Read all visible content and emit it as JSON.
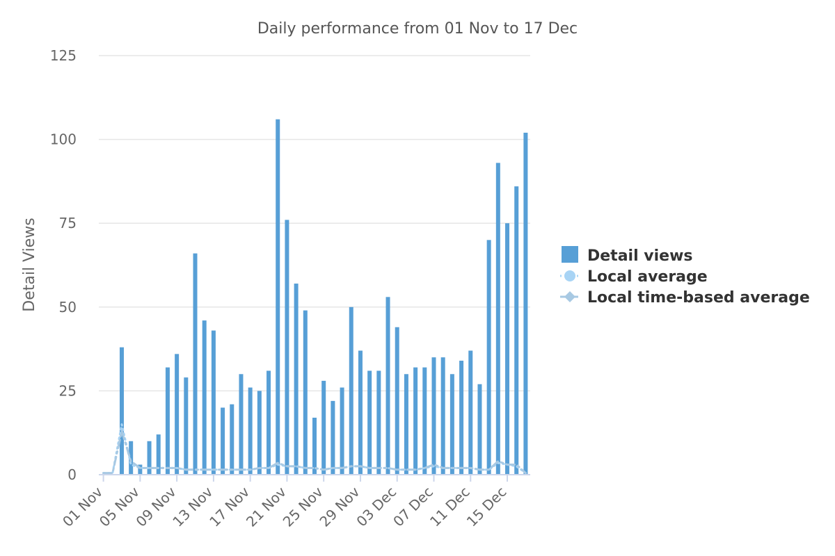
{
  "chart_data": {
    "type": "bar",
    "title": "Daily performance from 01 Nov to 17 Dec",
    "ylabel": "Detail Views",
    "xlabel": "",
    "ylim": [
      0,
      125
    ],
    "yticks": [
      0,
      25,
      50,
      75,
      100,
      125
    ],
    "grid": true,
    "legend_position": "right",
    "xtick_labels": [
      "01 Nov",
      "05 Nov",
      "09 Nov",
      "13 Nov",
      "17 Nov",
      "21 Nov",
      "25 Nov",
      "29 Nov",
      "03 Dec",
      "07 Dec",
      "11 Dec",
      "15 Dec"
    ],
    "x": [
      "01 Nov",
      "02 Nov",
      "03 Nov",
      "04 Nov",
      "05 Nov",
      "06 Nov",
      "07 Nov",
      "08 Nov",
      "09 Nov",
      "10 Nov",
      "11 Nov",
      "12 Nov",
      "13 Nov",
      "14 Nov",
      "15 Nov",
      "16 Nov",
      "17 Nov",
      "18 Nov",
      "19 Nov",
      "20 Nov",
      "21 Nov",
      "22 Nov",
      "23 Nov",
      "24 Nov",
      "25 Nov",
      "26 Nov",
      "27 Nov",
      "28 Nov",
      "29 Nov",
      "30 Nov",
      "01 Dec",
      "02 Dec",
      "03 Dec",
      "04 Dec",
      "05 Dec",
      "06 Dec",
      "07 Dec",
      "08 Dec",
      "09 Dec",
      "10 Dec",
      "11 Dec",
      "12 Dec",
      "13 Dec",
      "14 Dec",
      "15 Dec",
      "16 Dec",
      "17 Dec"
    ],
    "series": [
      {
        "name": "Detail views",
        "type": "bar",
        "color": "#579fd6",
        "values": [
          0,
          0,
          38,
          10,
          3,
          10,
          12,
          32,
          36,
          29,
          66,
          46,
          43,
          20,
          21,
          30,
          26,
          25,
          31,
          106,
          76,
          57,
          49,
          17,
          28,
          22,
          26,
          50,
          37,
          31,
          31,
          53,
          44,
          30,
          32,
          32,
          35,
          35,
          30,
          34,
          37,
          27,
          70,
          93,
          75,
          86,
          102
        ]
      },
      {
        "name": "Local average",
        "type": "line",
        "style": "dotted",
        "marker": "circle",
        "color": "#a8d4f5",
        "values": [
          0.5,
          0.5,
          15,
          3,
          2,
          2,
          2,
          2,
          2,
          1.5,
          1.5,
          1.5,
          1.5,
          1.5,
          1.5,
          1.5,
          1.5,
          2,
          2,
          3,
          2.5,
          2.5,
          2,
          2,
          1.5,
          2,
          2,
          2.5,
          2.5,
          2,
          2,
          2,
          1.5,
          1.5,
          1.5,
          2,
          2.5,
          2,
          2,
          2,
          2,
          1.5,
          1.5,
          3.5,
          3,
          2.5,
          0.5
        ]
      },
      {
        "name": "Local time-based average",
        "type": "line",
        "style": "dashdot",
        "marker": "diamond",
        "color": "#a8c9e3",
        "values": [
          0.5,
          0.5,
          13,
          4,
          2,
          2,
          2,
          2,
          2,
          1.5,
          1.5,
          1.5,
          1.5,
          1.5,
          1.5,
          1.5,
          1.5,
          2,
          2,
          3.5,
          2.5,
          2.5,
          2,
          2,
          1.5,
          2,
          2,
          2.5,
          2.5,
          2,
          2,
          2,
          1.5,
          1.5,
          1.5,
          2,
          3,
          2,
          2,
          2,
          2,
          1.5,
          1.5,
          4,
          3,
          3,
          0.5
        ]
      }
    ]
  }
}
